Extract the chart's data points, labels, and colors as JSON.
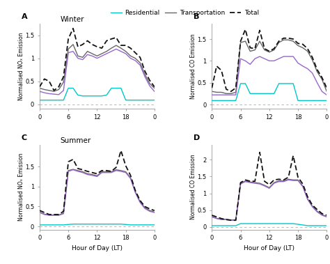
{
  "legend_labels": [
    "Residential",
    "Transportation",
    "Total"
  ],
  "legend_colors": [
    "#00c8c8",
    "#9966cc",
    "#333333"
  ],
  "legend_linestyles": [
    "-",
    "-",
    "--"
  ],
  "hours": [
    0,
    1,
    2,
    3,
    4,
    5,
    6,
    7,
    8,
    9,
    10,
    11,
    12,
    13,
    14,
    15,
    16,
    17,
    18,
    19,
    20,
    21,
    22,
    23,
    24
  ],
  "panels": [
    {
      "label": "A",
      "title": "Winter",
      "ylabel": "Normalised NOₓ Emission",
      "ylim": [
        -0.1,
        1.75
      ],
      "yticks": [
        0.0,
        0.5,
        1.0,
        1.5
      ],
      "residential": [
        0.09,
        0.09,
        0.09,
        0.09,
        0.09,
        0.09,
        0.35,
        0.35,
        0.2,
        0.18,
        0.18,
        0.18,
        0.18,
        0.18,
        0.2,
        0.35,
        0.35,
        0.35,
        0.09,
        0.09,
        0.09,
        0.09,
        0.09,
        0.09,
        0.09
      ],
      "transportation": [
        0.28,
        0.25,
        0.23,
        0.22,
        0.21,
        0.3,
        1.12,
        1.15,
        1.0,
        0.97,
        1.08,
        1.05,
        1.0,
        1.05,
        1.1,
        1.15,
        1.2,
        1.15,
        1.1,
        1.0,
        0.95,
        0.85,
        0.6,
        0.4,
        0.28
      ],
      "transportation_gray": [
        0.35,
        0.32,
        0.3,
        0.28,
        0.32,
        0.48,
        1.2,
        1.3,
        1.05,
        1.02,
        1.15,
        1.1,
        1.05,
        1.1,
        1.15,
        1.22,
        1.28,
        1.22,
        1.15,
        1.05,
        1.0,
        0.9,
        0.65,
        0.45,
        0.35
      ],
      "total": [
        0.38,
        0.55,
        0.5,
        0.3,
        0.38,
        0.6,
        1.42,
        1.65,
        1.25,
        1.3,
        1.38,
        1.3,
        1.25,
        1.22,
        1.38,
        1.42,
        1.45,
        1.28,
        1.28,
        1.22,
        1.12,
        1.02,
        0.72,
        0.52,
        0.38
      ]
    },
    {
      "label": "B",
      "title": null,
      "ylabel": "Normalised CO Emission",
      "ylim": [
        -0.1,
        1.85
      ],
      "yticks": [
        0.0,
        0.5,
        1.0,
        1.5
      ],
      "residential": [
        0.09,
        0.09,
        0.09,
        0.09,
        0.09,
        0.09,
        0.48,
        0.48,
        0.25,
        0.25,
        0.25,
        0.25,
        0.25,
        0.25,
        0.48,
        0.48,
        0.48,
        0.48,
        0.09,
        0.09,
        0.09,
        0.09,
        0.09,
        0.09,
        0.09
      ],
      "transportation": [
        0.22,
        0.22,
        0.22,
        0.22,
        0.22,
        0.22,
        1.05,
        1.0,
        0.92,
        1.05,
        1.1,
        1.05,
        1.0,
        1.0,
        1.05,
        1.1,
        1.1,
        1.1,
        0.95,
        0.88,
        0.82,
        0.72,
        0.5,
        0.3,
        0.22
      ],
      "transportation_gray": [
        0.3,
        0.28,
        0.28,
        0.25,
        0.25,
        0.28,
        1.42,
        1.45,
        1.22,
        1.25,
        1.45,
        1.25,
        1.2,
        1.25,
        1.42,
        1.48,
        1.48,
        1.45,
        1.35,
        1.3,
        1.22,
        1.02,
        0.75,
        0.58,
        0.3
      ],
      "total": [
        0.38,
        0.88,
        0.78,
        0.35,
        0.3,
        0.38,
        1.45,
        1.72,
        1.3,
        1.28,
        1.7,
        1.28,
        1.22,
        1.28,
        1.45,
        1.52,
        1.52,
        1.5,
        1.4,
        1.38,
        1.28,
        1.08,
        0.8,
        0.62,
        0.38
      ]
    },
    {
      "label": "C",
      "title": "Summer",
      "ylabel": "Normalised NOₓ Emission",
      "ylim": [
        -0.08,
        2.05
      ],
      "yticks": [
        0.0,
        0.5,
        1.0,
        1.5
      ],
      "residential": [
        0.04,
        0.04,
        0.04,
        0.04,
        0.04,
        0.04,
        0.05,
        0.06,
        0.06,
        0.06,
        0.06,
        0.06,
        0.06,
        0.06,
        0.06,
        0.06,
        0.06,
        0.06,
        0.05,
        0.04,
        0.04,
        0.04,
        0.04,
        0.04,
        0.04
      ],
      "transportation": [
        0.35,
        0.3,
        0.28,
        0.28,
        0.28,
        0.32,
        1.38,
        1.42,
        1.38,
        1.35,
        1.3,
        1.28,
        1.25,
        1.35,
        1.35,
        1.35,
        1.4,
        1.38,
        1.35,
        1.2,
        0.85,
        0.6,
        0.45,
        0.38,
        0.35
      ],
      "transportation_gray": [
        0.36,
        0.31,
        0.29,
        0.29,
        0.29,
        0.33,
        1.4,
        1.43,
        1.4,
        1.37,
        1.32,
        1.3,
        1.27,
        1.37,
        1.37,
        1.37,
        1.42,
        1.4,
        1.37,
        1.22,
        0.87,
        0.62,
        0.47,
        0.4,
        0.36
      ],
      "total": [
        0.4,
        0.35,
        0.3,
        0.3,
        0.3,
        0.38,
        1.62,
        1.68,
        1.45,
        1.42,
        1.38,
        1.35,
        1.32,
        1.4,
        1.4,
        1.38,
        1.48,
        1.9,
        1.52,
        1.28,
        0.9,
        0.65,
        0.5,
        0.44,
        0.4
      ]
    },
    {
      "label": "D",
      "title": null,
      "ylabel": "Normalised CO Emission",
      "ylim": [
        -0.08,
        2.45
      ],
      "yticks": [
        0.0,
        0.5,
        1.0,
        1.5,
        2.0
      ],
      "residential": [
        0.04,
        0.04,
        0.04,
        0.04,
        0.04,
        0.04,
        0.1,
        0.1,
        0.1,
        0.1,
        0.1,
        0.1,
        0.1,
        0.1,
        0.1,
        0.1,
        0.1,
        0.1,
        0.08,
        0.06,
        0.04,
        0.04,
        0.04,
        0.04,
        0.04
      ],
      "transportation": [
        0.3,
        0.25,
        0.22,
        0.22,
        0.2,
        0.2,
        1.28,
        1.35,
        1.32,
        1.3,
        1.28,
        1.22,
        1.15,
        1.3,
        1.35,
        1.35,
        1.4,
        1.38,
        1.38,
        1.2,
        0.82,
        0.6,
        0.45,
        0.35,
        0.3
      ],
      "transportation_gray": [
        0.31,
        0.26,
        0.23,
        0.23,
        0.21,
        0.21,
        1.3,
        1.37,
        1.34,
        1.32,
        1.3,
        1.24,
        1.17,
        1.32,
        1.37,
        1.37,
        1.42,
        1.4,
        1.4,
        1.22,
        0.84,
        0.62,
        0.47,
        0.37,
        0.31
      ],
      "total": [
        0.35,
        0.3,
        0.25,
        0.22,
        0.2,
        0.2,
        1.32,
        1.4,
        1.36,
        1.36,
        2.22,
        1.36,
        1.26,
        1.4,
        1.42,
        1.4,
        1.48,
        2.12,
        1.48,
        1.28,
        0.9,
        0.65,
        0.52,
        0.4,
        0.35
      ]
    }
  ],
  "xlabel": "Hour of Day (LT)",
  "line_color_residential": "#00c8c8",
  "line_color_transportation_purple": "#9966cc",
  "line_color_transportation_gray": "#666666",
  "line_color_total": "#111111",
  "dashed_zero_color": "#bbbbbb",
  "xticks": [
    0,
    6,
    12,
    18,
    24
  ],
  "xticklabels": [
    "0",
    "6",
    "12",
    "18",
    "0"
  ]
}
